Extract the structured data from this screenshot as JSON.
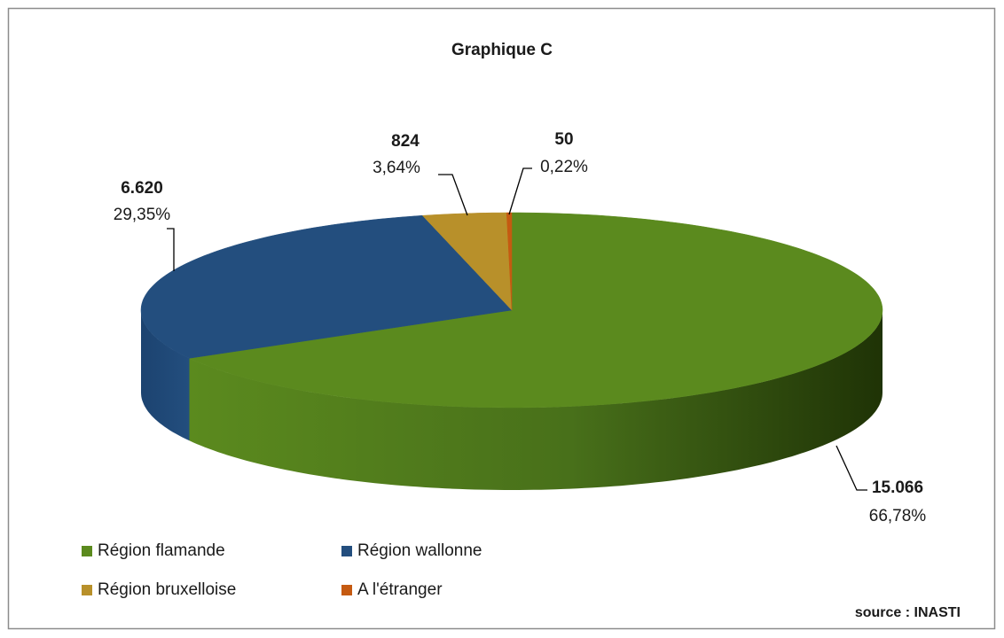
{
  "chart_data": {
    "type": "pie3d",
    "title": "Graphique C",
    "categories": [
      "Région flamande",
      "Région wallonne",
      "Région bruxelloise",
      "A l'étranger"
    ],
    "values": [
      15066,
      6620,
      824,
      50
    ],
    "value_labels": [
      "15.066",
      "6.620",
      "824",
      "50"
    ],
    "percent_labels": [
      "66,78%",
      "29,35%",
      "3,64%",
      "0,22%"
    ],
    "colors": [
      "#5b8a1e",
      "#234e7e",
      "#b8902a",
      "#c55a11"
    ],
    "legend": "bottom",
    "source": "source : INASTI"
  }
}
